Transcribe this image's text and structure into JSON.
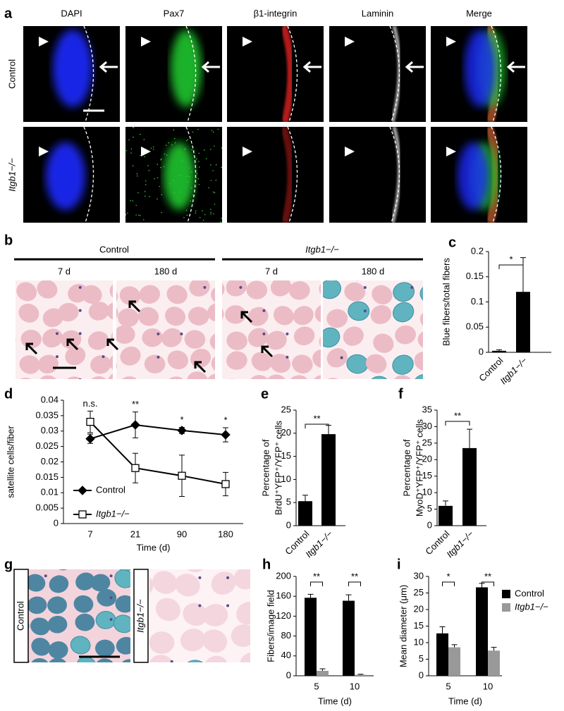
{
  "panel_labels": [
    "a",
    "b",
    "c",
    "d",
    "e",
    "f",
    "g",
    "h",
    "i"
  ],
  "panel_a": {
    "channels": [
      "DAPI",
      "Pax7",
      "β1-integrin",
      "Laminin",
      "Merge"
    ],
    "rows": [
      "Control",
      "Itgb1−/−"
    ]
  },
  "panel_b": {
    "groups": [
      "Control",
      "Itgb1−/−"
    ],
    "timepoints": [
      "7 d",
      "180 d",
      "7 d",
      "180 d"
    ]
  },
  "panel_g": {
    "rows": [
      "Control",
      "Itgb1−/−"
    ]
  },
  "chart_data": [
    {
      "type": "bar",
      "ylabel": "Blue fibers/total fibers",
      "categories": [
        "Control",
        "Itgb1−/−"
      ],
      "values": [
        0.003,
        0.12
      ],
      "errors": [
        0.002,
        0.068
      ],
      "color": "#000000",
      "ylim": [
        0,
        0.2
      ],
      "yticks": [
        0,
        0.05,
        0.1,
        0.15,
        0.2
      ],
      "annotations": [
        "*"
      ]
    },
    {
      "type": "line",
      "ylabel": "satellite cells/fiber",
      "xlabel": "Time (d)",
      "categories": [
        "7",
        "21",
        "90",
        "180"
      ],
      "series": [
        {
          "name": "Control",
          "color": "#000000",
          "marker": "diamond",
          "values": [
            0.0275,
            0.032,
            0.0302,
            0.0288
          ],
          "errors": [
            0.0015,
            0.0042,
            0.001,
            0.0023
          ]
        },
        {
          "name": "Itgb1−/−",
          "color": "#000000",
          "marker": "square",
          "marker_fill": "#ffffff",
          "values": [
            0.033,
            0.018,
            0.0155,
            0.0128
          ],
          "errors": [
            0.0035,
            0.0048,
            0.0067,
            0.0038
          ]
        }
      ],
      "ylim": [
        0,
        0.04
      ],
      "yticks": [
        0,
        0.005,
        0.01,
        0.015,
        0.02,
        0.025,
        0.03,
        0.035,
        0.04
      ],
      "annotations": [
        "n.s.",
        "**",
        "*",
        "*"
      ],
      "legend": "lower left"
    },
    {
      "type": "bar",
      "ylabel": [
        "Percentage of",
        "BrdU⁺YFP⁺/YFP⁺ cells"
      ],
      "categories": [
        "Control",
        "Itgb1−/−"
      ],
      "values": [
        5.3,
        19.8
      ],
      "errors": [
        1.3,
        1.9
      ],
      "color": "#000000",
      "ylim": [
        0,
        25
      ],
      "yticks": [
        0,
        5,
        10,
        15,
        20,
        25
      ],
      "annotations": [
        "**"
      ]
    },
    {
      "type": "bar",
      "ylabel": [
        "Percentage of",
        "MyoD⁺YFP⁺/YFP⁺ cells"
      ],
      "categories": [
        "Control",
        "Itgb1−/−"
      ],
      "values": [
        6,
        23.5
      ],
      "errors": [
        1.5,
        5.7
      ],
      "color": "#000000",
      "ylim": [
        0,
        35
      ],
      "yticks": [
        0,
        5,
        10,
        15,
        20,
        25,
        30,
        35
      ],
      "annotations": [
        "**"
      ]
    },
    {
      "type": "bar",
      "ylabel": "Fibers/image field",
      "xlabel": "Time (d)",
      "categories": [
        "5",
        "10"
      ],
      "series": [
        {
          "color": "#000000",
          "values": [
            157,
            151
          ],
          "errors": [
            7,
            12
          ]
        },
        {
          "color": "#999999",
          "values": [
            10,
            2
          ],
          "errors": [
            4,
            1
          ]
        }
      ],
      "ylim": [
        0,
        200
      ],
      "yticks": [
        0,
        40,
        80,
        120,
        160,
        200
      ],
      "annotations": [
        "**",
        "**"
      ]
    },
    {
      "type": "bar",
      "ylabel": "Mean diameter (μm)",
      "xlabel": "Time (d)",
      "categories": [
        "5",
        "10"
      ],
      "series": [
        {
          "name": "Control",
          "color": "#000000",
          "values": [
            12.8,
            26.7
          ],
          "errors": [
            2,
            1.2
          ]
        },
        {
          "name": "Itgb1−/−",
          "color": "#999999",
          "values": [
            8.6,
            7.6
          ],
          "errors": [
            0.8,
            1
          ]
        }
      ],
      "ylim": [
        0,
        30
      ],
      "yticks": [
        0,
        5,
        10,
        15,
        20,
        25,
        30
      ],
      "annotations": [
        "*",
        "**"
      ],
      "legend": "upper right"
    }
  ]
}
